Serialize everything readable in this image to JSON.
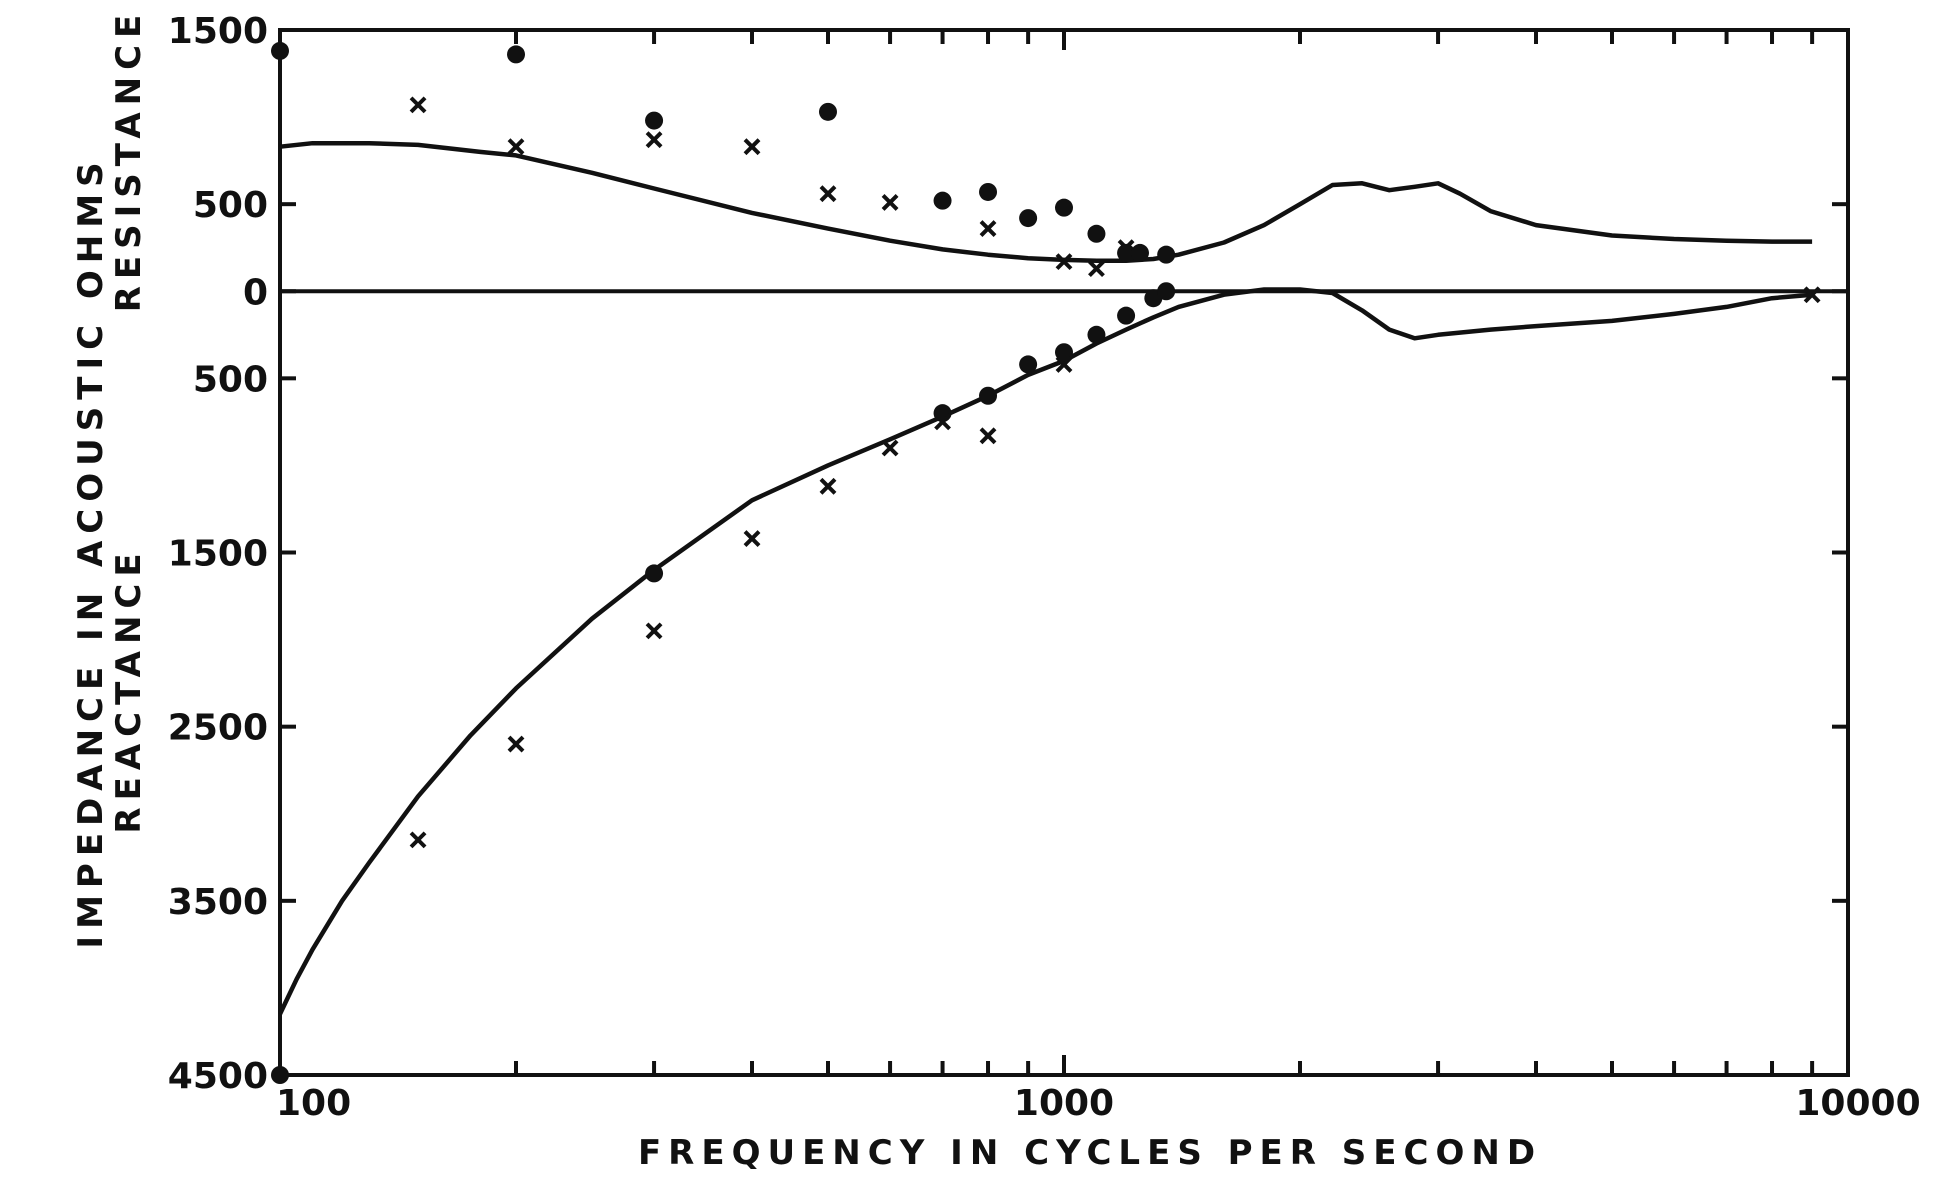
{
  "chart_data": {
    "type": "line",
    "x_scale": "log",
    "xlim": [
      100,
      10000
    ],
    "ylim": [
      -4500,
      1500
    ],
    "y_tick_values": [
      1500,
      500,
      0,
      -500,
      -1500,
      -2500,
      -3500,
      -4500
    ],
    "y_tick_labels": [
      "1500",
      "500",
      "0",
      "500",
      "1500",
      "2500",
      "3500",
      "4500"
    ],
    "x_tick_values": [
      100,
      1000,
      10000
    ],
    "x_tick_labels": [
      "100",
      "1000",
      "10000"
    ],
    "xlabel": "FREQUENCY IN CYCLES PER SECOND",
    "ylabel_outer": "IMPEDANCE IN ACOUSTIC OHMS",
    "ylabel_resistance": "RESISTANCE",
    "ylabel_reactance": "REACTANCE",
    "grid": false,
    "color": "#111111",
    "series": [
      {
        "kind": "line",
        "x": [
          100,
          110,
          130,
          150,
          180,
          200,
          250,
          300,
          400,
          500,
          600,
          700,
          800,
          900,
          1000,
          1100,
          1200,
          1300,
          1400,
          1600,
          1800,
          2000,
          2200,
          2400,
          2600,
          2800,
          3000,
          3200,
          3500,
          4000,
          5000,
          6000,
          7000,
          8000,
          9000
        ],
        "values": [
          830,
          850,
          850,
          840,
          800,
          780,
          680,
          590,
          450,
          360,
          290,
          240,
          210,
          190,
          180,
          175,
          175,
          185,
          210,
          280,
          380,
          500,
          610,
          620,
          580,
          600,
          620,
          560,
          460,
          380,
          320,
          300,
          290,
          285,
          285
        ]
      },
      {
        "kind": "line",
        "x": [
          100,
          105,
          110,
          120,
          130,
          150,
          175,
          200,
          250,
          300,
          400,
          500,
          600,
          700,
          800,
          900,
          1000,
          1100,
          1200,
          1300,
          1400,
          1600,
          1800,
          2000,
          2200,
          2400,
          2600,
          2800,
          3000,
          3500,
          4000,
          5000,
          6000,
          7000,
          8000,
          9000
        ],
        "values": [
          -4150,
          -3950,
          -3780,
          -3500,
          -3280,
          -2900,
          -2550,
          -2280,
          -1880,
          -1600,
          -1200,
          -1000,
          -850,
          -720,
          -600,
          -480,
          -400,
          -300,
          -220,
          -150,
          -90,
          -20,
          10,
          10,
          -10,
          -110,
          -220,
          -270,
          -250,
          -220,
          -200,
          -170,
          -130,
          -90,
          -40,
          -20
        ]
      },
      {
        "kind": "points",
        "marker": "dot",
        "x": [
          100,
          200,
          300,
          500,
          700,
          800,
          900,
          1000,
          1100,
          1200,
          1250,
          1350,
          100,
          300,
          700,
          800,
          900,
          1000,
          1100,
          1200,
          1300,
          1350
        ],
        "values": [
          1380,
          1360,
          980,
          1030,
          520,
          570,
          420,
          480,
          330,
          220,
          220,
          210,
          -4500,
          -1620,
          -700,
          -600,
          -420,
          -350,
          -250,
          -140,
          -40,
          0
        ]
      },
      {
        "kind": "points",
        "marker": "x",
        "x": [
          150,
          200,
          300,
          400,
          500,
          600,
          800,
          1000,
          1200,
          1100,
          150,
          200,
          300,
          400,
          500,
          600,
          700,
          800,
          1000,
          9000
        ],
        "values": [
          1070,
          830,
          870,
          830,
          560,
          510,
          360,
          170,
          250,
          130,
          -3150,
          -2600,
          -1950,
          -1420,
          -1120,
          -900,
          -750,
          -830,
          -420,
          -20
        ]
      }
    ]
  }
}
